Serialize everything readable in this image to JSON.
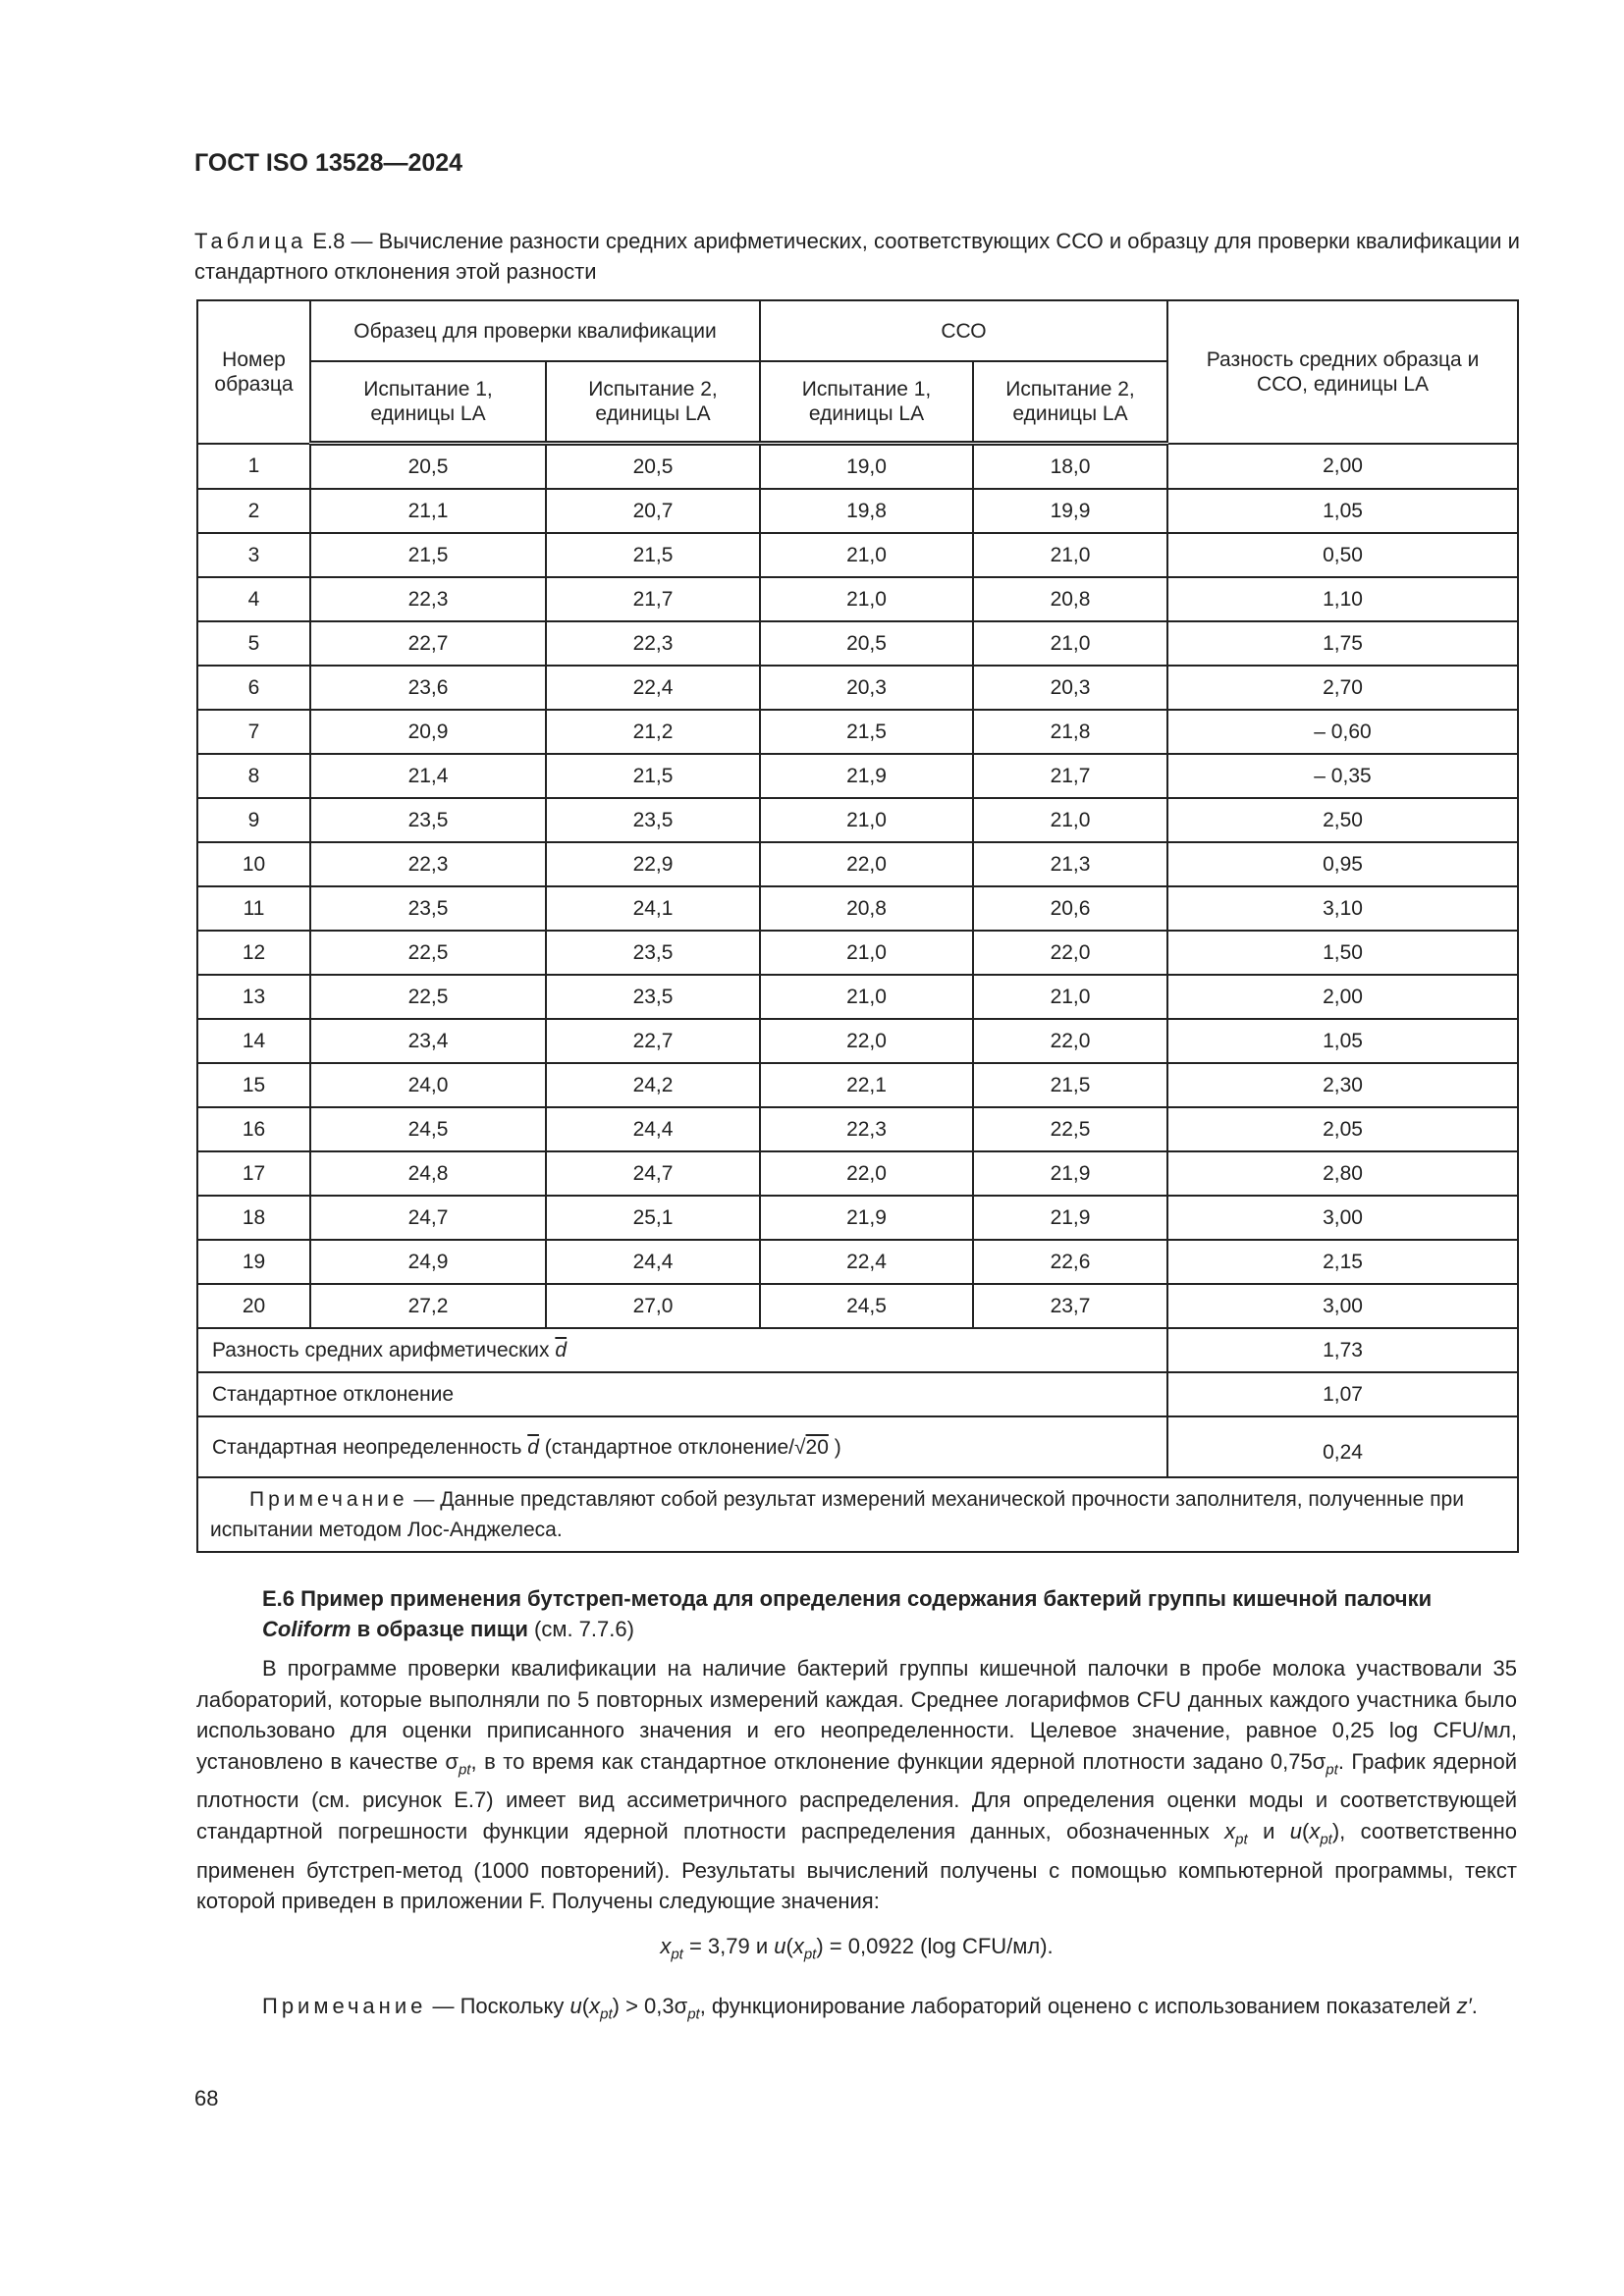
{
  "header": {
    "doc_id": "ГОСТ ISO 13528—2024"
  },
  "table_caption": {
    "label": "Таблица",
    "text": " Е.8 — Вычисление разности средних арифметических, соответствующих ССО и образцу для проверки квалификации и стандартного отклонения этой разности"
  },
  "table": {
    "headers": {
      "sample_no": "Номер образца",
      "pt_group": "Образец для проверки квалификации",
      "cco_group": "ССО",
      "diff": "Разность средних образца и ССО, единицы LA",
      "test1": "Испытание 1, единицы LA",
      "test2": "Испытание 2, единицы LA"
    },
    "rows": [
      [
        "1",
        "20,5",
        "20,5",
        "19,0",
        "18,0",
        "2,00"
      ],
      [
        "2",
        "21,1",
        "20,7",
        "19,8",
        "19,9",
        "1,05"
      ],
      [
        "3",
        "21,5",
        "21,5",
        "21,0",
        "21,0",
        "0,50"
      ],
      [
        "4",
        "22,3",
        "21,7",
        "21,0",
        "20,8",
        "1,10"
      ],
      [
        "5",
        "22,7",
        "22,3",
        "20,5",
        "21,0",
        "1,75"
      ],
      [
        "6",
        "23,6",
        "22,4",
        "20,3",
        "20,3",
        "2,70"
      ],
      [
        "7",
        "20,9",
        "21,2",
        "21,5",
        "21,8",
        "– 0,60"
      ],
      [
        "8",
        "21,4",
        "21,5",
        "21,9",
        "21,7",
        "– 0,35"
      ],
      [
        "9",
        "23,5",
        "23,5",
        "21,0",
        "21,0",
        "2,50"
      ],
      [
        "10",
        "22,3",
        "22,9",
        "22,0",
        "21,3",
        "0,95"
      ],
      [
        "11",
        "23,5",
        "24,1",
        "20,8",
        "20,6",
        "3,10"
      ],
      [
        "12",
        "22,5",
        "23,5",
        "21,0",
        "22,0",
        "1,50"
      ],
      [
        "13",
        "22,5",
        "23,5",
        "21,0",
        "21,0",
        "2,00"
      ],
      [
        "14",
        "23,4",
        "22,7",
        "22,0",
        "22,0",
        "1,05"
      ],
      [
        "15",
        "24,0",
        "24,2",
        "22,1",
        "21,5",
        "2,30"
      ],
      [
        "16",
        "24,5",
        "24,4",
        "22,3",
        "22,5",
        "2,05"
      ],
      [
        "17",
        "24,8",
        "24,7",
        "22,0",
        "21,9",
        "2,80"
      ],
      [
        "18",
        "24,7",
        "25,1",
        "21,9",
        "21,9",
        "3,00"
      ],
      [
        "19",
        "24,9",
        "24,4",
        "22,4",
        "22,6",
        "2,15"
      ],
      [
        "20",
        "27,2",
        "27,0",
        "24,5",
        "23,7",
        "3,00"
      ]
    ],
    "summary": {
      "mean_diff_label": "Разность средних арифметических ",
      "mean_diff_symbol": "d",
      "mean_diff_value": "1,73",
      "std_label": "Стандартное отклонение",
      "std_value": "1,07",
      "unc_label": "Стандартная неопределенность ",
      "unc_symbol": "d",
      "unc_label2": " (стандартное отклонение/",
      "unc_sqrt": "√",
      "unc_n": "20",
      "unc_close": " )",
      "unc_value": "0,24"
    },
    "note_label": "Примечание",
    "note_text": " — Данные представляют собой результат измерений механической прочности заполнителя, полученные при испытании методом Лос-Анджелеса."
  },
  "section": {
    "bold1": "Е.6 Пример применения бутстреп-метода для определения содержания бактерий группы кишечной палочки ",
    "italic": "Coliform",
    "bold2": " в образце пищи",
    "ref": " (см. 7.7.6)"
  },
  "paragraph": [
    {
      "t": "В программе проверки квалификации на наличие бактерий группы кишечной палочки в пробе молока участвовали 35 лабораторий, которые выполняли по 5 повторных измерений каждая. Среднее логарифмов CFU данных каждого участника было использовано для оценки приписанного значения и его неопределенности. Целевое значение, равное 0,25 log CFU/мл, установлено в качестве σ"
    },
    {
      "t": "pt",
      "sub": true
    },
    {
      "t": ", в то время как стандартное отклонение функции ядерной плотности задано 0,75σ"
    },
    {
      "t": "pt",
      "sub": true
    },
    {
      "t": ". График ядерной плотности (см. рисунок Е.7) имеет вид ассиметричного распределения. Для определения оценки моды и соответствующей стандартной погрешности функции ядерной плотности распределения данных, обозначенных "
    },
    {
      "t": "x",
      "i": true
    },
    {
      "t": "pt",
      "sub": true
    },
    {
      "t": " и "
    },
    {
      "t": "u",
      "i": true
    },
    {
      "t": "("
    },
    {
      "t": "x",
      "i": true
    },
    {
      "t": "pt",
      "sub": true
    },
    {
      "t": "), соответственно применен бутстреп-метод (1000 повторений). Результаты вычислений получены с помощью компьютерной программы, текст которой приведен в приложении F. Получены следующие значения:"
    }
  ],
  "formula": [
    {
      "t": "x",
      "i": true
    },
    {
      "t": "pt",
      "sub": true
    },
    {
      "t": " = 3,79 и "
    },
    {
      "t": "u",
      "i": true
    },
    {
      "t": "("
    },
    {
      "t": "x",
      "i": true
    },
    {
      "t": "pt",
      "sub": true
    },
    {
      "t": ") = 0,0922 (log CFU/мл)."
    }
  ],
  "note2": [
    {
      "t": "Примечание",
      "sp": true
    },
    {
      "t": " — Поскольку "
    },
    {
      "t": "u",
      "i": true
    },
    {
      "t": "("
    },
    {
      "t": "x",
      "i": true
    },
    {
      "t": "pt",
      "sub": true
    },
    {
      "t": ") > 0,3σ"
    },
    {
      "t": "pt",
      "sub": true
    },
    {
      "t": ", функционирование лабораторий оценено с использованием показателей "
    },
    {
      "t": "z′",
      "i": true
    },
    {
      "t": "."
    }
  ],
  "page_number": "68"
}
